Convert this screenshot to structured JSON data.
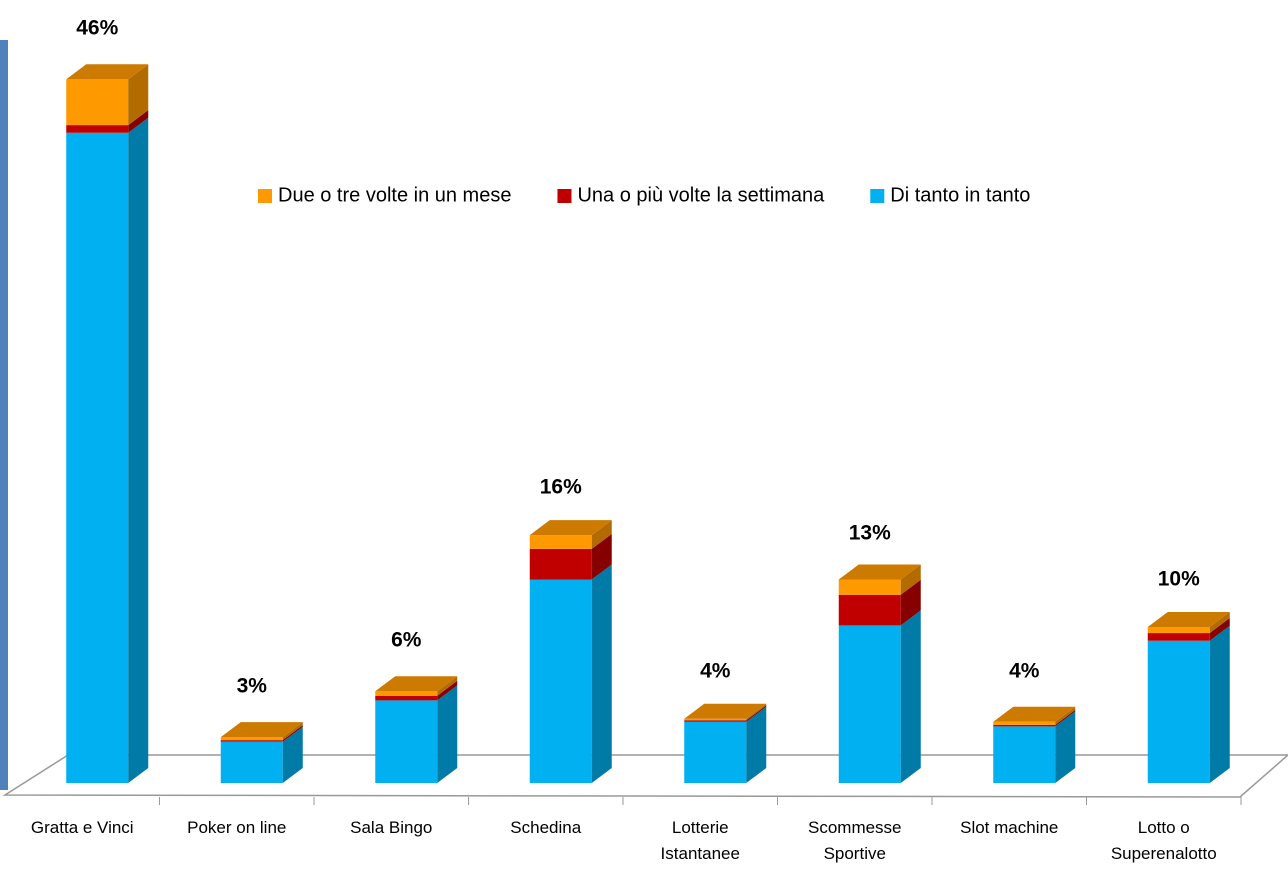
{
  "chart_data": {
    "type": "bar3d_stacked",
    "categories": [
      "Gratta e Vinci",
      "Poker on line",
      "Sala Bingo",
      "Schedina",
      "Lotterie Istantanee",
      "Scommesse Sportive",
      "Slot machine",
      "Lotto o Superenalotto"
    ],
    "series": [
      {
        "name": "Di tanto in tanto",
        "color": "#00b0f0",
        "values": [
          42.5,
          2.7,
          5.4,
          13.3,
          4.0,
          10.3,
          3.7,
          9.3
        ]
      },
      {
        "name": "Una o più volte la settimana",
        "color": "#c00000",
        "values": [
          0.5,
          0.1,
          0.3,
          2.0,
          0.1,
          2.0,
          0.1,
          0.5
        ]
      },
      {
        "name": "Due o tre volte in un mese",
        "color": "#ff9900",
        "values": [
          3.0,
          0.2,
          0.3,
          0.9,
          0.1,
          1.0,
          0.2,
          0.4
        ]
      }
    ],
    "totals": [
      46,
      3,
      6,
      16,
      4,
      13,
      4,
      10
    ],
    "total_labels": [
      "46%",
      "3%",
      "6%",
      "16%",
      "4%",
      "13%",
      "4%",
      "10%"
    ],
    "ylim": [
      0,
      50
    ],
    "legend": "top"
  }
}
